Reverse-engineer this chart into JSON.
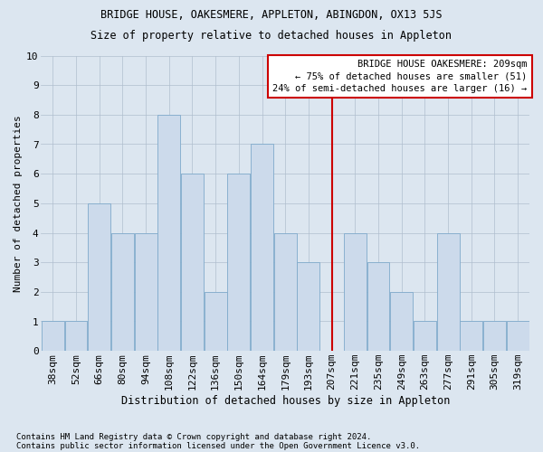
{
  "title1": "BRIDGE HOUSE, OAKESMERE, APPLETON, ABINGDON, OX13 5JS",
  "title2": "Size of property relative to detached houses in Appleton",
  "xlabel": "Distribution of detached houses by size in Appleton",
  "ylabel": "Number of detached properties",
  "footer1": "Contains HM Land Registry data © Crown copyright and database right 2024.",
  "footer2": "Contains public sector information licensed under the Open Government Licence v3.0.",
  "categories": [
    "38sqm",
    "52sqm",
    "66sqm",
    "80sqm",
    "94sqm",
    "108sqm",
    "122sqm",
    "136sqm",
    "150sqm",
    "164sqm",
    "179sqm",
    "193sqm",
    "207sqm",
    "221sqm",
    "235sqm",
    "249sqm",
    "263sqm",
    "277sqm",
    "291sqm",
    "305sqm",
    "319sqm"
  ],
  "values": [
    1,
    1,
    5,
    4,
    4,
    8,
    6,
    2,
    6,
    7,
    4,
    3,
    0,
    4,
    3,
    2,
    1,
    4,
    1,
    1,
    1
  ],
  "bar_color": "#ccdaeb",
  "bar_edge_color": "#7faacb",
  "vline_x_index": 12,
  "vline_color": "#cc0000",
  "annotation_title": "BRIDGE HOUSE OAKESMERE: 209sqm",
  "annotation_line1": "← 75% of detached houses are smaller (51)",
  "annotation_line2": "24% of semi-detached houses are larger (16) →",
  "annot_box_color": "#ffffff",
  "annot_box_edge": "#cc0000",
  "bg_color": "#dce6f0",
  "ylim": [
    0,
    10
  ],
  "yticks": [
    0,
    1,
    2,
    3,
    4,
    5,
    6,
    7,
    8,
    9,
    10
  ],
  "title1_fontsize": 8.5,
  "title2_fontsize": 8.5,
  "xlabel_fontsize": 8.5,
  "ylabel_fontsize": 8.0,
  "tick_fontsize": 8.0,
  "annot_fontsize": 7.5,
  "footer_fontsize": 6.5
}
